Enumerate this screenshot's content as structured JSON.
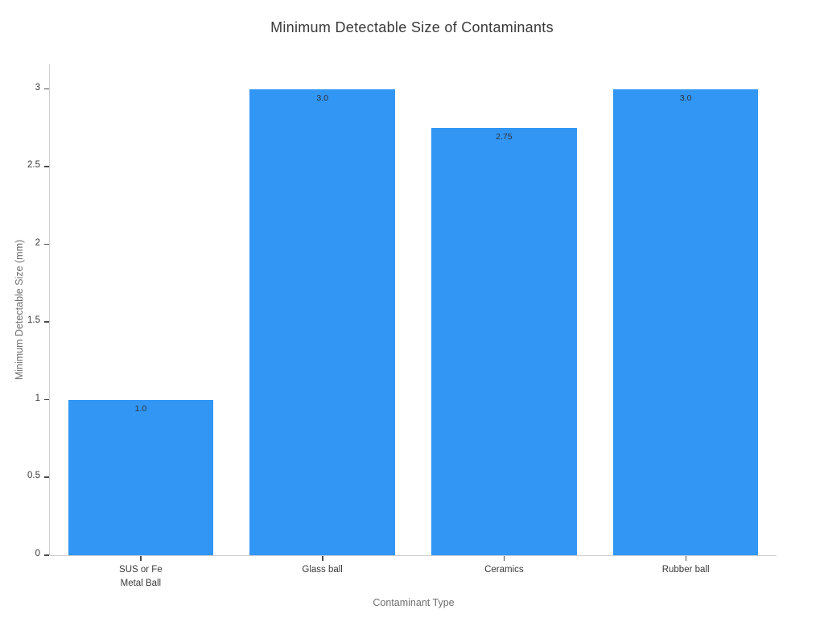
{
  "chart_data": {
    "type": "bar",
    "title": "Minimum Detectable Size of Contaminants",
    "xlabel": "Contaminant Type",
    "ylabel": "Minimum Detectable Size (mm)",
    "categories": [
      "SUS or Fe\nMetal Ball",
      "Glass ball",
      "Ceramics",
      "Rubber ball"
    ],
    "values": [
      1.0,
      3.0,
      2.75,
      3.0
    ],
    "bar_labels": [
      "1.0",
      "3.0",
      "2.75",
      "3.0"
    ],
    "yticks": [
      0,
      0.5,
      1,
      1.5,
      2,
      2.5,
      3
    ],
    "ytick_labels": [
      "0",
      "0.5",
      "1",
      "1.5",
      "2",
      "2.5",
      "3"
    ],
    "ylim": [
      0,
      3.16
    ],
    "grid": false,
    "legend": "none",
    "colors": {
      "bar": "#3296f5",
      "axis_line": "#cfcfcf",
      "tick_mark": "#4a4a4a",
      "tick_label": "#3a3a3a",
      "axis_title": "#6e6e6e",
      "chart_title": "#3a3a3a",
      "bar_value_label": "#2e3338",
      "background": "#ffffff"
    }
  }
}
